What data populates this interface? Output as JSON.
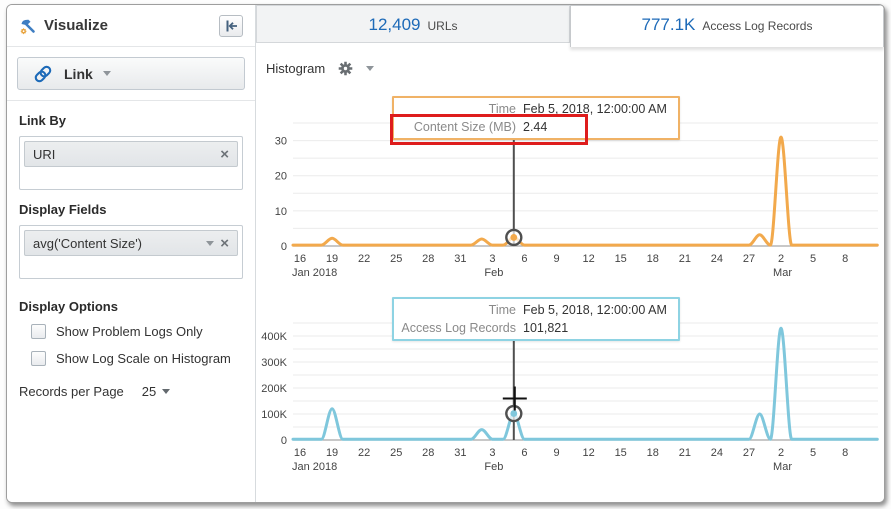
{
  "ui_colors": {
    "accent_blue": "#1d6ab8",
    "link_icon_blue": "#3b73b9"
  },
  "sidebar": {
    "title": "Visualize",
    "link_button": {
      "label": "Link"
    },
    "link_by": {
      "label": "Link By",
      "chips": [
        {
          "label": "URI"
        }
      ]
    },
    "display_fields": {
      "label": "Display Fields",
      "chips": [
        {
          "label": "avg('Content Size')"
        }
      ]
    },
    "display_options": {
      "label": "Display Options",
      "checkboxes": [
        {
          "label": "Show Problem Logs Only",
          "checked": false
        },
        {
          "label": "Show Log Scale on Histogram",
          "checked": false
        }
      ]
    },
    "records_per_page": {
      "label": "Records per Page",
      "value": "25"
    }
  },
  "tabs": [
    {
      "count": "12,409",
      "label": "URLs",
      "active": false
    },
    {
      "count": "777.1K",
      "label": "Access Log Records",
      "active": true
    }
  ],
  "toolbar": {
    "view_label": "Histogram"
  },
  "chart_data": [
    {
      "type": "line",
      "series_name": "Content Size (MB)",
      "line_color": "#f2a94c",
      "x_start_date": "2018-01-16",
      "x_end_date": "2018-03-08",
      "x_days": 52,
      "x_tick_labels": [
        "16",
        "19",
        "22",
        "25",
        "28",
        "31",
        "3",
        "6",
        "9",
        "12",
        "15",
        "18",
        "21",
        "24",
        "27",
        "2",
        "5",
        "8"
      ],
      "x_month_labels": [
        {
          "text": "Jan 2018",
          "tick_index": 0
        },
        {
          "text": "Feb",
          "tick_index": 6
        },
        {
          "text": "Mar",
          "tick_index": 15
        }
      ],
      "y_tick_values": [
        0,
        10,
        20,
        30
      ],
      "y_tick_labels": [
        "0",
        "10",
        "20",
        "30"
      ],
      "y_minor_step": 5,
      "ylim": [
        0,
        35
      ],
      "grid": true,
      "baseline_value": 0.25,
      "peaks": [
        {
          "date": "2018-01-19",
          "day_index": 3,
          "value": 2.2
        },
        {
          "date": "2018-02-02",
          "day_index": 17,
          "value": 2.0
        },
        {
          "date": "2018-02-05",
          "day_index": 20,
          "value": 2.44
        },
        {
          "date": "2018-02-28",
          "day_index": 43,
          "value": 3.2
        },
        {
          "date": "2018-03-02",
          "day_index": 45,
          "value": 31
        }
      ],
      "hover": {
        "day_index": 20,
        "crosshair": false,
        "tooltip_border_color": "#f0b266",
        "tooltip_rows": [
          {
            "label": "Time",
            "value": "Feb 5, 2018, 12:00:00 AM"
          },
          {
            "label": "Content Size (MB)",
            "value": "2.44"
          }
        ],
        "highlight_row": 1,
        "highlight_color": "#de1c1c"
      }
    },
    {
      "type": "line",
      "series_name": "Access Log Records",
      "line_color": "#7fc7dc",
      "x_start_date": "2018-01-16",
      "x_end_date": "2018-03-08",
      "x_days": 52,
      "x_tick_labels": [
        "16",
        "19",
        "22",
        "25",
        "28",
        "31",
        "3",
        "6",
        "9",
        "12",
        "15",
        "18",
        "21",
        "24",
        "27",
        "2",
        "5",
        "8"
      ],
      "x_month_labels": [
        {
          "text": "Jan 2018",
          "tick_index": 0
        },
        {
          "text": "Feb",
          "tick_index": 6
        },
        {
          "text": "Mar",
          "tick_index": 15
        }
      ],
      "y_tick_values": [
        0,
        100000,
        200000,
        300000,
        400000
      ],
      "y_tick_labels": [
        "0",
        "100K",
        "200K",
        "300K",
        "400K"
      ],
      "y_minor_step": 50000,
      "ylim": [
        0,
        450000
      ],
      "grid": true,
      "baseline_value": 3000,
      "peaks": [
        {
          "date": "2018-01-19",
          "day_index": 3,
          "value": 120000
        },
        {
          "date": "2018-02-02",
          "day_index": 17,
          "value": 40000
        },
        {
          "date": "2018-02-05",
          "day_index": 20,
          "value": 101821
        },
        {
          "date": "2018-02-28",
          "day_index": 43,
          "value": 100000
        },
        {
          "date": "2018-03-02",
          "day_index": 45,
          "value": 430000
        }
      ],
      "hover": {
        "day_index": 20,
        "crosshair": true,
        "tooltip_border_color": "#8ed3e3",
        "tooltip_rows": [
          {
            "label": "Time",
            "value": "Feb 5, 2018, 12:00:00 AM"
          },
          {
            "label": "Access Log Records",
            "value": "101,821"
          }
        ]
      }
    }
  ]
}
